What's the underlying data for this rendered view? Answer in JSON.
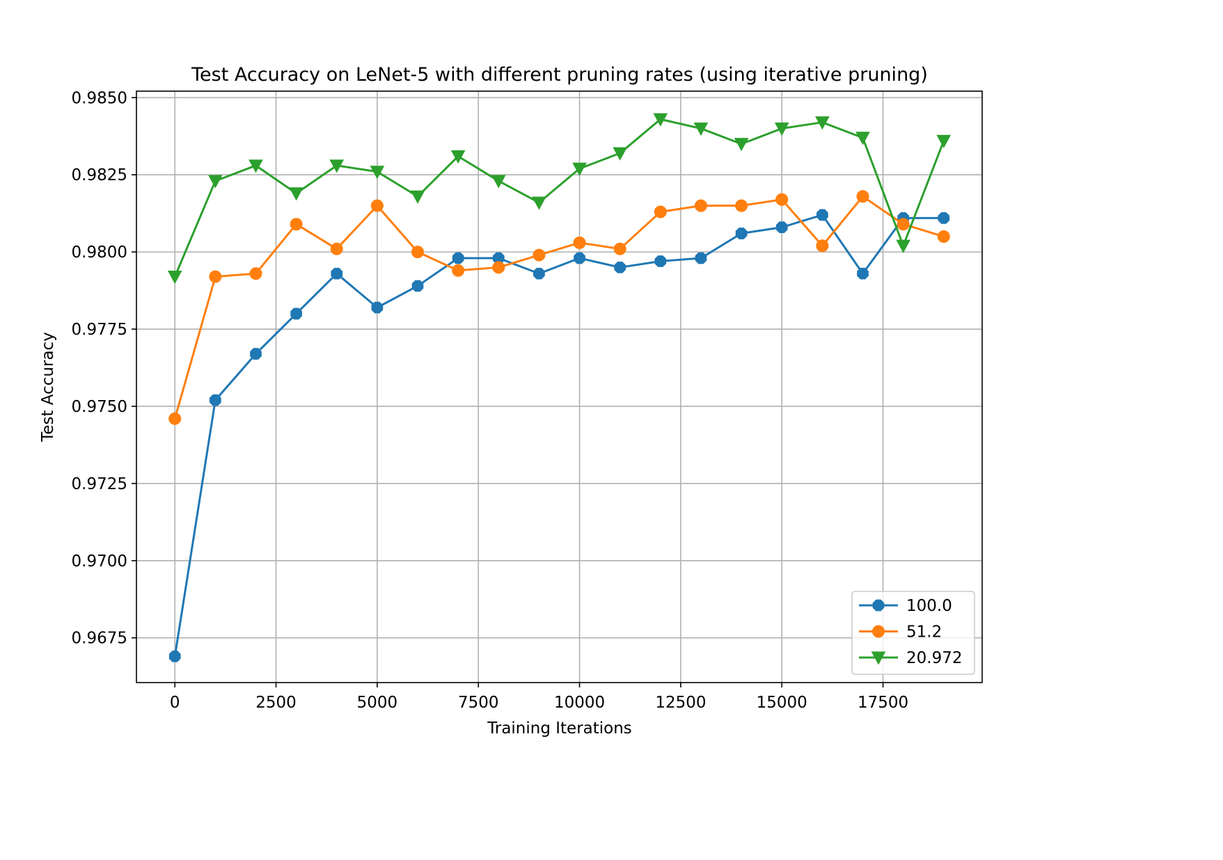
{
  "chart_data": {
    "type": "line",
    "title": "Test Accuracy on LeNet-5 with different pruning rates (using iterative pruning)",
    "xlabel": "Training Iterations",
    "ylabel": "Test Accuracy",
    "xlim": [
      -950,
      19950
    ],
    "ylim": [
      0.96605,
      0.98521
    ],
    "xticks": [
      0,
      2500,
      5000,
      7500,
      10000,
      12500,
      15000,
      17500
    ],
    "xtick_labels": [
      "0",
      "2500",
      "5000",
      "7500",
      "10000",
      "12500",
      "15000",
      "17500"
    ],
    "yticks": [
      0.9675,
      0.97,
      0.9725,
      0.975,
      0.9775,
      0.98,
      0.9825,
      0.985
    ],
    "ytick_labels": [
      "0.9675",
      "0.9700",
      "0.9725",
      "0.9750",
      "0.9775",
      "0.9800",
      "0.9825",
      "0.9850"
    ],
    "grid": true,
    "legend_position": "lower-right",
    "x": [
      0,
      1000,
      2000,
      3000,
      4000,
      5000,
      6000,
      7000,
      8000,
      9000,
      10000,
      11000,
      12000,
      13000,
      14000,
      15000,
      16000,
      17000,
      18000,
      19000
    ],
    "series": [
      {
        "name": "100.0",
        "color": "#1f77b4",
        "marker": "octagon",
        "values": [
          0.9669,
          0.9752,
          0.9767,
          0.978,
          0.9793,
          0.9782,
          0.9789,
          0.9798,
          0.9798,
          0.9793,
          0.9798,
          0.9795,
          0.9797,
          0.9798,
          0.9806,
          0.9808,
          0.9812,
          0.9793,
          0.9811,
          0.9811
        ]
      },
      {
        "name": "51.2",
        "color": "#ff7f0e",
        "marker": "circle",
        "values": [
          0.9746,
          0.9792,
          0.9793,
          0.9809,
          0.9801,
          0.9815,
          0.98,
          0.9794,
          0.9795,
          0.9799,
          0.9803,
          0.9801,
          0.9813,
          0.9815,
          0.9815,
          0.9817,
          0.9802,
          0.9818,
          0.9809,
          0.9805
        ]
      },
      {
        "name": "20.972",
        "color": "#2ca02c",
        "marker": "triangle-down",
        "values": [
          0.9792,
          0.9823,
          0.9828,
          0.9819,
          0.9828,
          0.9826,
          0.9818,
          0.9831,
          0.9823,
          0.9816,
          0.9827,
          0.9832,
          0.9843,
          0.984,
          0.9835,
          0.984,
          0.9842,
          0.9837,
          0.9802,
          0.9836
        ]
      }
    ]
  }
}
